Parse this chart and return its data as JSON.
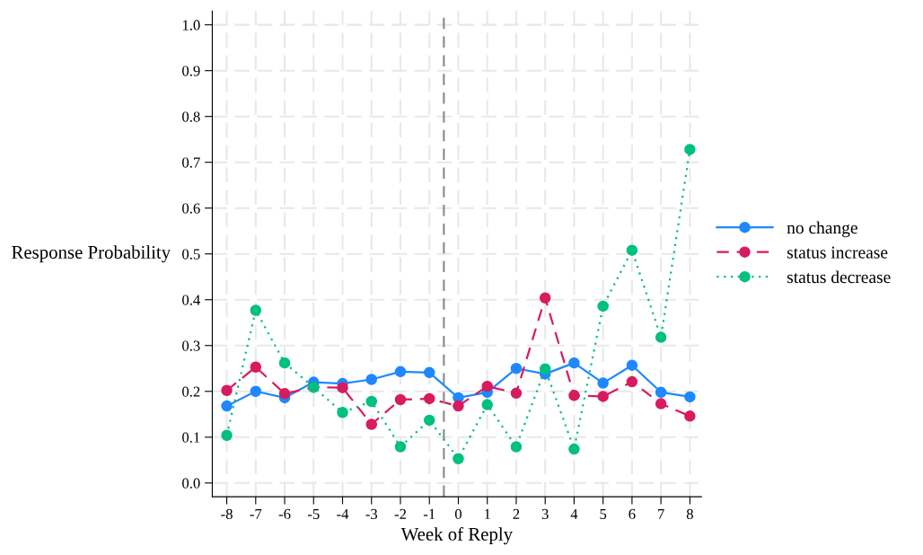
{
  "chart_data": {
    "type": "line",
    "xlabel": "Week of Reply",
    "ylabel": "Response Probability",
    "x": [
      -8,
      -7,
      -6,
      -5,
      -4,
      -3,
      -2,
      -1,
      0,
      1,
      2,
      3,
      4,
      5,
      6,
      7,
      8
    ],
    "series": [
      {
        "name": "no change",
        "color": "#1e88ff",
        "line_style": "solid",
        "values": [
          0.168,
          0.2,
          0.186,
          0.22,
          0.217,
          0.226,
          0.243,
          0.241,
          0.186,
          0.198,
          0.25,
          0.238,
          0.262,
          0.218,
          0.257,
          0.198,
          0.188
        ]
      },
      {
        "name": "status increase",
        "color": "#d81b60",
        "line_style": "dashed",
        "values": [
          0.202,
          0.253,
          0.195,
          0.209,
          0.208,
          0.128,
          0.182,
          0.184,
          0.168,
          0.211,
          0.196,
          0.404,
          0.191,
          0.189,
          0.221,
          0.173,
          0.146
        ]
      },
      {
        "name": "status decrease",
        "color": "#00c07f",
        "line_style": "dotted",
        "values": [
          0.104,
          0.377,
          0.262,
          0.209,
          0.154,
          0.178,
          0.079,
          0.137,
          0.053,
          0.171,
          0.079,
          0.249,
          0.074,
          0.386,
          0.508,
          0.318,
          0.728
        ]
      }
    ],
    "xlim": [
      -8.5,
      8.4
    ],
    "xticks": [
      -8,
      -7,
      -6,
      -5,
      -4,
      -3,
      -2,
      -1,
      0,
      1,
      2,
      3,
      4,
      5,
      6,
      7,
      8
    ],
    "ylim": [
      -0.03,
      1.03
    ],
    "yticks": [
      {
        "value": 0,
        "label": "0.0"
      },
      0.1,
      0.2,
      0.3,
      0.4,
      0.5,
      0.6,
      0.7,
      0.8,
      0.9,
      {
        "value": 1,
        "label": "1.0"
      }
    ],
    "ref_lines": [
      {
        "axis": "x",
        "value": -0.5,
        "color": "#888888",
        "line_style": "dashed"
      }
    ],
    "grid": true,
    "legend": "right",
    "marker": "circle"
  }
}
